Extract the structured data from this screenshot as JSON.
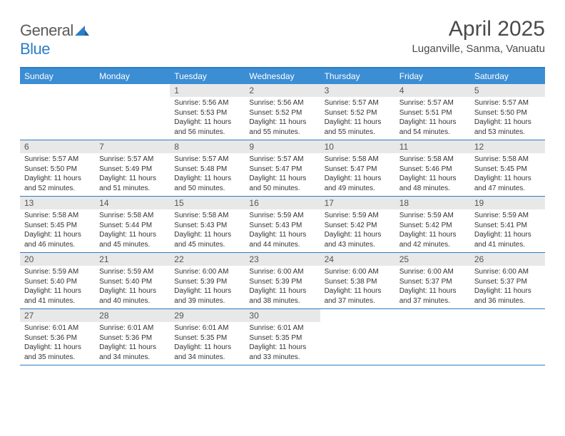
{
  "brand": {
    "part1": "General",
    "part2": "Blue"
  },
  "title": "April 2025",
  "location": "Luganville, Sanma, Vanuatu",
  "colors": {
    "header_bg": "#3b8dd4",
    "border": "#2d7cc1",
    "daynum_bg": "#e8e8e8",
    "text": "#333333",
    "title_text": "#4a4a4a"
  },
  "day_headers": [
    "Sunday",
    "Monday",
    "Tuesday",
    "Wednesday",
    "Thursday",
    "Friday",
    "Saturday"
  ],
  "weeks": [
    [
      {
        "n": "",
        "sr": "",
        "ss": "",
        "dl": ""
      },
      {
        "n": "",
        "sr": "",
        "ss": "",
        "dl": ""
      },
      {
        "n": "1",
        "sr": "Sunrise: 5:56 AM",
        "ss": "Sunset: 5:53 PM",
        "dl": "Daylight: 11 hours and 56 minutes."
      },
      {
        "n": "2",
        "sr": "Sunrise: 5:56 AM",
        "ss": "Sunset: 5:52 PM",
        "dl": "Daylight: 11 hours and 55 minutes."
      },
      {
        "n": "3",
        "sr": "Sunrise: 5:57 AM",
        "ss": "Sunset: 5:52 PM",
        "dl": "Daylight: 11 hours and 55 minutes."
      },
      {
        "n": "4",
        "sr": "Sunrise: 5:57 AM",
        "ss": "Sunset: 5:51 PM",
        "dl": "Daylight: 11 hours and 54 minutes."
      },
      {
        "n": "5",
        "sr": "Sunrise: 5:57 AM",
        "ss": "Sunset: 5:50 PM",
        "dl": "Daylight: 11 hours and 53 minutes."
      }
    ],
    [
      {
        "n": "6",
        "sr": "Sunrise: 5:57 AM",
        "ss": "Sunset: 5:50 PM",
        "dl": "Daylight: 11 hours and 52 minutes."
      },
      {
        "n": "7",
        "sr": "Sunrise: 5:57 AM",
        "ss": "Sunset: 5:49 PM",
        "dl": "Daylight: 11 hours and 51 minutes."
      },
      {
        "n": "8",
        "sr": "Sunrise: 5:57 AM",
        "ss": "Sunset: 5:48 PM",
        "dl": "Daylight: 11 hours and 50 minutes."
      },
      {
        "n": "9",
        "sr": "Sunrise: 5:57 AM",
        "ss": "Sunset: 5:47 PM",
        "dl": "Daylight: 11 hours and 50 minutes."
      },
      {
        "n": "10",
        "sr": "Sunrise: 5:58 AM",
        "ss": "Sunset: 5:47 PM",
        "dl": "Daylight: 11 hours and 49 minutes."
      },
      {
        "n": "11",
        "sr": "Sunrise: 5:58 AM",
        "ss": "Sunset: 5:46 PM",
        "dl": "Daylight: 11 hours and 48 minutes."
      },
      {
        "n": "12",
        "sr": "Sunrise: 5:58 AM",
        "ss": "Sunset: 5:45 PM",
        "dl": "Daylight: 11 hours and 47 minutes."
      }
    ],
    [
      {
        "n": "13",
        "sr": "Sunrise: 5:58 AM",
        "ss": "Sunset: 5:45 PM",
        "dl": "Daylight: 11 hours and 46 minutes."
      },
      {
        "n": "14",
        "sr": "Sunrise: 5:58 AM",
        "ss": "Sunset: 5:44 PM",
        "dl": "Daylight: 11 hours and 45 minutes."
      },
      {
        "n": "15",
        "sr": "Sunrise: 5:58 AM",
        "ss": "Sunset: 5:43 PM",
        "dl": "Daylight: 11 hours and 45 minutes."
      },
      {
        "n": "16",
        "sr": "Sunrise: 5:59 AM",
        "ss": "Sunset: 5:43 PM",
        "dl": "Daylight: 11 hours and 44 minutes."
      },
      {
        "n": "17",
        "sr": "Sunrise: 5:59 AM",
        "ss": "Sunset: 5:42 PM",
        "dl": "Daylight: 11 hours and 43 minutes."
      },
      {
        "n": "18",
        "sr": "Sunrise: 5:59 AM",
        "ss": "Sunset: 5:42 PM",
        "dl": "Daylight: 11 hours and 42 minutes."
      },
      {
        "n": "19",
        "sr": "Sunrise: 5:59 AM",
        "ss": "Sunset: 5:41 PM",
        "dl": "Daylight: 11 hours and 41 minutes."
      }
    ],
    [
      {
        "n": "20",
        "sr": "Sunrise: 5:59 AM",
        "ss": "Sunset: 5:40 PM",
        "dl": "Daylight: 11 hours and 41 minutes."
      },
      {
        "n": "21",
        "sr": "Sunrise: 5:59 AM",
        "ss": "Sunset: 5:40 PM",
        "dl": "Daylight: 11 hours and 40 minutes."
      },
      {
        "n": "22",
        "sr": "Sunrise: 6:00 AM",
        "ss": "Sunset: 5:39 PM",
        "dl": "Daylight: 11 hours and 39 minutes."
      },
      {
        "n": "23",
        "sr": "Sunrise: 6:00 AM",
        "ss": "Sunset: 5:39 PM",
        "dl": "Daylight: 11 hours and 38 minutes."
      },
      {
        "n": "24",
        "sr": "Sunrise: 6:00 AM",
        "ss": "Sunset: 5:38 PM",
        "dl": "Daylight: 11 hours and 37 minutes."
      },
      {
        "n": "25",
        "sr": "Sunrise: 6:00 AM",
        "ss": "Sunset: 5:37 PM",
        "dl": "Daylight: 11 hours and 37 minutes."
      },
      {
        "n": "26",
        "sr": "Sunrise: 6:00 AM",
        "ss": "Sunset: 5:37 PM",
        "dl": "Daylight: 11 hours and 36 minutes."
      }
    ],
    [
      {
        "n": "27",
        "sr": "Sunrise: 6:01 AM",
        "ss": "Sunset: 5:36 PM",
        "dl": "Daylight: 11 hours and 35 minutes."
      },
      {
        "n": "28",
        "sr": "Sunrise: 6:01 AM",
        "ss": "Sunset: 5:36 PM",
        "dl": "Daylight: 11 hours and 34 minutes."
      },
      {
        "n": "29",
        "sr": "Sunrise: 6:01 AM",
        "ss": "Sunset: 5:35 PM",
        "dl": "Daylight: 11 hours and 34 minutes."
      },
      {
        "n": "30",
        "sr": "Sunrise: 6:01 AM",
        "ss": "Sunset: 5:35 PM",
        "dl": "Daylight: 11 hours and 33 minutes."
      },
      {
        "n": "",
        "sr": "",
        "ss": "",
        "dl": ""
      },
      {
        "n": "",
        "sr": "",
        "ss": "",
        "dl": ""
      },
      {
        "n": "",
        "sr": "",
        "ss": "",
        "dl": ""
      }
    ]
  ]
}
